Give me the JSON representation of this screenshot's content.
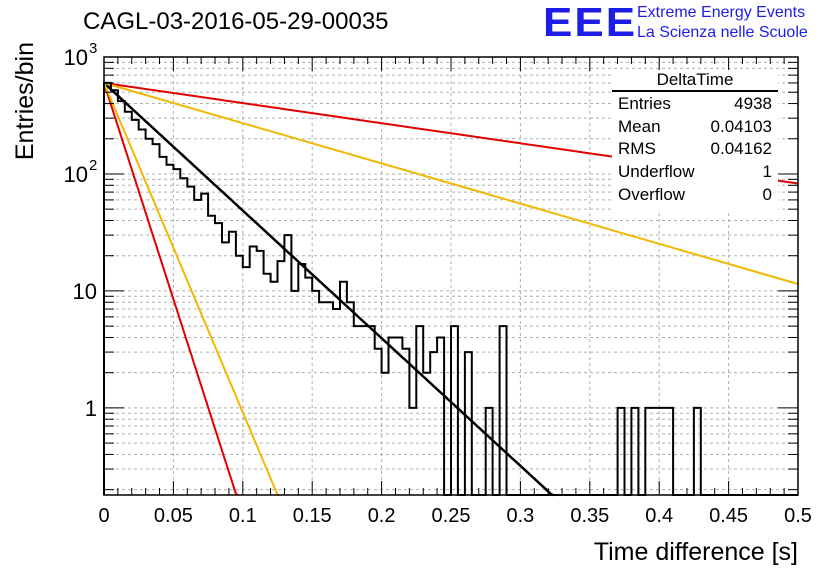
{
  "header": {
    "title": "CAGL-03-2016-05-29-00035",
    "logo": "EEE",
    "brand_line1": "Extreme Energy Events",
    "brand_line2": "La Scienza nelle Scuole",
    "brand_color": "#1d1de8"
  },
  "stats_box": {
    "name": "DeltaTime",
    "rows": [
      {
        "label": "Entries",
        "value": "4938"
      },
      {
        "label": "Mean",
        "value": "0.04103"
      },
      {
        "label": "RMS",
        "value": "0.04162"
      },
      {
        "label": "Underflow",
        "value": "1"
      },
      {
        "label": "Overflow",
        "value": "0"
      }
    ]
  },
  "chart_data": {
    "type": "line",
    "xlabel": "Time difference [s]",
    "ylabel": "Entries/bin",
    "xlim": [
      0,
      0.5
    ],
    "ylim": [
      0.18,
      1000
    ],
    "yscale": "log",
    "grid": true,
    "x_ticks": [
      "0",
      "0.05",
      "0.1",
      "0.15",
      "0.2",
      "0.25",
      "0.3",
      "0.35",
      "0.4",
      "0.45",
      "0.5"
    ],
    "y_ticks": [
      {
        "value": 1,
        "label": "1"
      },
      {
        "value": 10,
        "label": "10"
      },
      {
        "value": 100,
        "label": "10",
        "exponent": "2"
      },
      {
        "value": 1000,
        "label": "10",
        "exponent": "3"
      }
    ],
    "histogram": {
      "color": "#000000",
      "bin_width": 0.005,
      "x0": 0,
      "values": [
        600,
        520,
        420,
        340,
        290,
        240,
        200,
        180,
        140,
        120,
        110,
        92,
        78,
        60,
        68,
        44,
        38,
        26,
        32,
        20,
        16,
        24,
        22,
        14,
        12,
        18,
        30,
        10,
        17,
        13,
        10,
        8,
        8,
        7,
        12,
        8,
        5,
        5,
        5,
        3.2,
        2.0,
        4.0,
        4.0,
        3.2,
        1.0,
        5.0,
        2.0,
        3.0,
        4.0,
        0.1,
        5.0,
        0.1,
        3.0,
        0.1,
        0.1,
        1.0,
        0.1,
        5.0,
        0.1,
        0.1,
        0.1,
        0.1,
        0.1,
        0.1,
        0.1,
        0.1,
        0.1,
        0.1,
        0.1,
        0.1,
        0.1,
        0.1,
        0.1,
        0.1,
        1.0,
        0.1,
        1.0,
        0.1,
        1.0,
        1.0,
        1.0,
        1.0,
        0.1,
        0.1,
        0.1,
        1.0,
        0.1,
        0.1,
        0.1,
        0.1,
        0.1,
        0.1,
        0.1,
        0.1,
        0.1,
        0.1,
        0.1,
        0.1,
        0.1,
        0.1
      ],
      "comment": ""
    },
    "curves": [
      {
        "kind": "exp",
        "color": "#000000",
        "width": 2.5,
        "a": 600,
        "tau": 0.0398
      },
      {
        "kind": "exp",
        "color": "#e00000",
        "width": 2,
        "a": 600,
        "tau": 0.01175
      },
      {
        "kind": "exp",
        "color": "#f0b800",
        "width": 2,
        "a": 600,
        "tau": 0.01542
      },
      {
        "kind": "exp",
        "color": "#e00000",
        "width": 2,
        "a": 600,
        "tau": 0.2525
      },
      {
        "kind": "exp",
        "color": "#f0b800",
        "width": 2,
        "a": 600,
        "tau": 0.1263
      }
    ]
  }
}
